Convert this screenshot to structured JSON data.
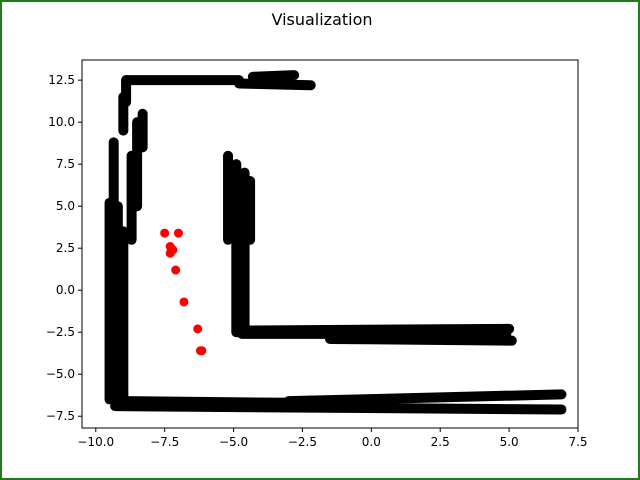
{
  "figure": {
    "title": "Visualization",
    "border_color": "#1a7f1a"
  },
  "chart_data": {
    "type": "scatter",
    "title": "Visualization",
    "xlabel": "",
    "ylabel": "",
    "xlim": [
      -10.5,
      7.5
    ],
    "ylim": [
      -8.2,
      13.7
    ],
    "xticks": [
      -10.0,
      -7.5,
      -5.0,
      -2.5,
      0.0,
      2.5,
      5.0,
      7.5
    ],
    "yticks": [
      -7.5,
      -5.0,
      -2.5,
      0.0,
      2.5,
      5.0,
      7.5,
      10.0,
      12.5
    ],
    "xtick_labels": [
      "−10.0",
      "−7.5",
      "−5.0",
      "−2.5",
      "0.0",
      "2.5",
      "5.0",
      "7.5"
    ],
    "ytick_labels": [
      "−7.5",
      "−5.0",
      "−2.5",
      "0.0",
      "2.5",
      "5.0",
      "7.5",
      "10.0",
      "12.5"
    ],
    "grid": false,
    "series": [
      {
        "color": "#000000",
        "kind": "segments",
        "segments": [
          [
            [
              -9.5,
              -6.5
            ],
            [
              -9.5,
              5.2
            ]
          ],
          [
            [
              -9.2,
              -6.6
            ],
            [
              -9.2,
              5.0
            ]
          ],
          [
            [
              -9.35,
              -6.3
            ],
            [
              -9.35,
              8.8
            ]
          ],
          [
            [
              -9.0,
              -6.8
            ],
            [
              -9.0,
              3.5
            ]
          ],
          [
            [
              -8.7,
              3.0
            ],
            [
              -8.7,
              8.0
            ]
          ],
          [
            [
              -8.5,
              5.0
            ],
            [
              -8.5,
              10.0
            ]
          ],
          [
            [
              -8.3,
              8.5
            ],
            [
              -8.3,
              10.5
            ]
          ],
          [
            [
              -9.0,
              9.5
            ],
            [
              -9.0,
              11.5
            ]
          ],
          [
            [
              -8.9,
              11.2
            ],
            [
              -8.9,
              12.5
            ]
          ],
          [
            [
              -8.9,
              12.5
            ],
            [
              -4.8,
              12.5
            ]
          ],
          [
            [
              -4.8,
              12.3
            ],
            [
              -2.2,
              12.2
            ]
          ],
          [
            [
              -4.3,
              12.7
            ],
            [
              -2.8,
              12.8
            ]
          ],
          [
            [
              -9.3,
              -6.9
            ],
            [
              6.9,
              -7.1
            ]
          ],
          [
            [
              -9.0,
              -6.6
            ],
            [
              -3.0,
              -6.7
            ]
          ],
          [
            [
              -3.0,
              -6.6
            ],
            [
              6.9,
              -6.2
            ]
          ],
          [
            [
              -5.2,
              8.0
            ],
            [
              -5.2,
              3.0
            ]
          ],
          [
            [
              -4.9,
              7.5
            ],
            [
              -4.9,
              -2.5
            ]
          ],
          [
            [
              -4.6,
              7.0
            ],
            [
              -4.6,
              -2.4
            ]
          ],
          [
            [
              -4.4,
              6.5
            ],
            [
              -4.4,
              3.0
            ]
          ],
          [
            [
              -4.8,
              -2.4
            ],
            [
              5.0,
              -2.3
            ]
          ],
          [
            [
              -4.7,
              -2.6
            ],
            [
              4.9,
              -2.6
            ]
          ],
          [
            [
              -1.5,
              -2.9
            ],
            [
              5.1,
              -3.0
            ]
          ]
        ]
      },
      {
        "color": "#ff0000",
        "kind": "points",
        "x": [
          -7.5,
          -7.0,
          -7.3,
          -7.2,
          -7.3,
          -7.1,
          -6.8,
          -6.3,
          -6.2,
          -6.15
        ],
        "y": [
          3.4,
          3.4,
          2.6,
          2.4,
          2.2,
          1.2,
          -0.7,
          -2.3,
          -3.6,
          -3.6
        ]
      }
    ]
  }
}
